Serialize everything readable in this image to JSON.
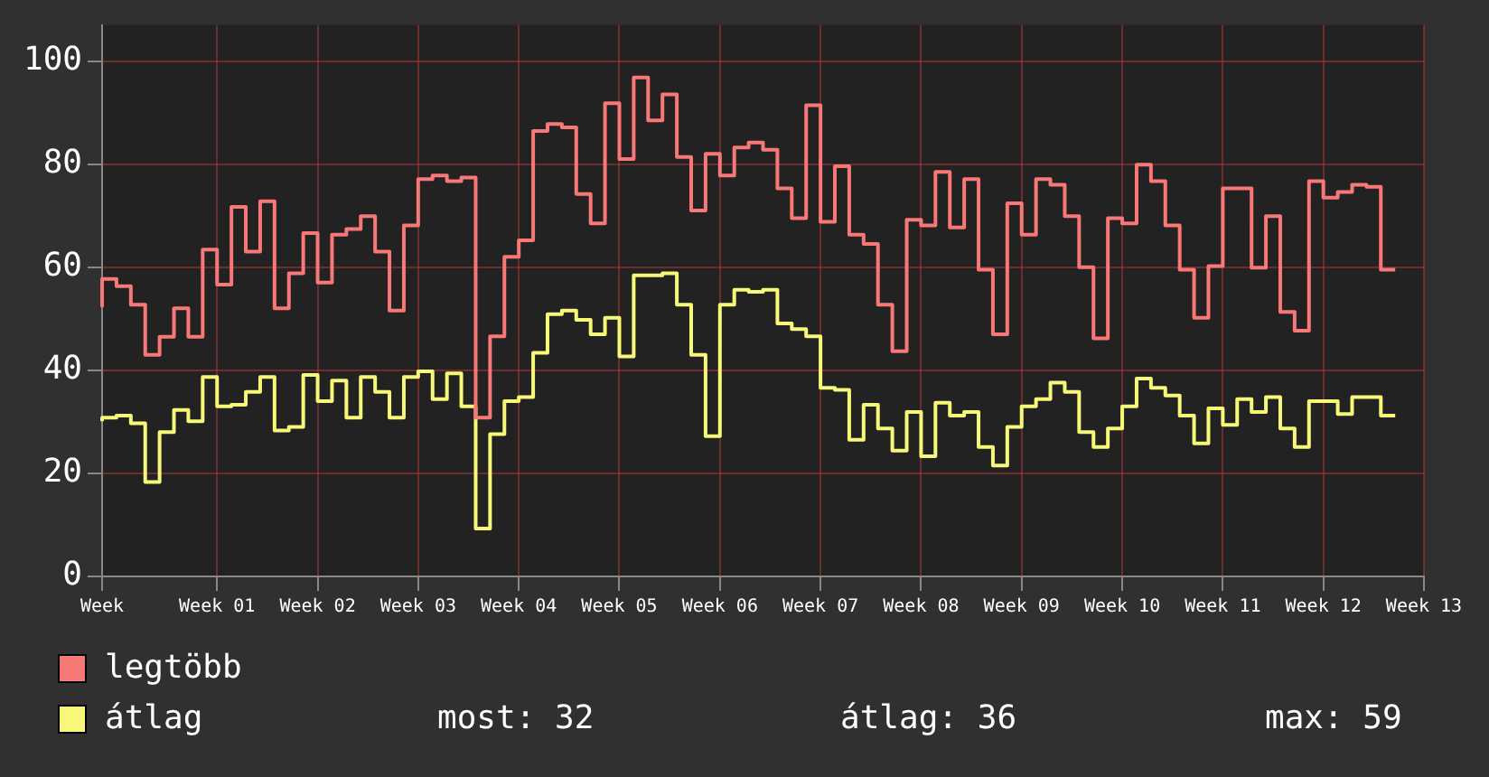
{
  "chart_data": {
    "type": "step",
    "categories": [
      "Week",
      null,
      null,
      null,
      null,
      null,
      null,
      null,
      "Week 01",
      null,
      null,
      null,
      null,
      null,
      null,
      "Week 02",
      null,
      null,
      null,
      null,
      null,
      null,
      "Week 03",
      null,
      null,
      null,
      null,
      null,
      null,
      "Week 04",
      null,
      null,
      null,
      null,
      null,
      null,
      "Week 05",
      null,
      null,
      null,
      null,
      null,
      null,
      "Week 06",
      null,
      null,
      null,
      null,
      null,
      null,
      "Week 07",
      null,
      null,
      null,
      null,
      null,
      null,
      "Week 08",
      null,
      null,
      null,
      null,
      null,
      null,
      "Week 09",
      null,
      null,
      null,
      null,
      null,
      null,
      "Week 10",
      null,
      null,
      null,
      null,
      null,
      null,
      "Week 11",
      null,
      null,
      null,
      null,
      null,
      null,
      "Week 12",
      null,
      null,
      null,
      null,
      null,
      null,
      "Week 13"
    ],
    "series": [
      {
        "name": "legtöbb",
        "color": "#f87878",
        "values": [
          52.3,
          57.7,
          56.3,
          52.7,
          43,
          46.5,
          52,
          46.5,
          63.4,
          56.6,
          71.7,
          63,
          72.8,
          52,
          58.8,
          66.6,
          57,
          66.3,
          67.4,
          69.9,
          63,
          51.6,
          68.1,
          77.1,
          77.8,
          76.7,
          77.4,
          30.8,
          46.6,
          62,
          65.2,
          86.4,
          87.8,
          87.1,
          74.2,
          68.5,
          91.8,
          81,
          96.8,
          88.5,
          93.5,
          81.4,
          71,
          82,
          77.8,
          83.2,
          84.2,
          82.8,
          75.3,
          69.5,
          91.4,
          68.8,
          79.6,
          66.3,
          64.5,
          52.7,
          43.7,
          69.2,
          68.1,
          78.5,
          67.7,
          77.1,
          59.5,
          47,
          72.4,
          66.3,
          77.1,
          76,
          69.9,
          60,
          46.2,
          69.5,
          68.5,
          79.9,
          76.7,
          68.1,
          59.5,
          50.2,
          60.2,
          75.3,
          75.3,
          59.9,
          69.9,
          51.3,
          47.7,
          76.7,
          73.5,
          74.6,
          76,
          75.6,
          59.5,
          null,
          null
        ]
      },
      {
        "name": "átlag",
        "color": "#f8f878",
        "values": [
          30.1,
          30.8,
          31.2,
          29.7,
          18.3,
          28,
          32.3,
          30.1,
          38.7,
          33,
          33.3,
          35.8,
          38.7,
          28.3,
          29,
          39.1,
          34,
          38,
          30.8,
          38.7,
          35.8,
          30.8,
          38.7,
          39.8,
          34.4,
          39.4,
          33,
          9.3,
          27.6,
          34,
          34.8,
          43.4,
          50.9,
          51.6,
          49.8,
          47,
          50.2,
          42.7,
          58.4,
          58.4,
          58.8,
          52.7,
          43,
          27.2,
          52.7,
          55.6,
          55.2,
          55.6,
          49.1,
          48,
          46.6,
          36.6,
          36.2,
          26.5,
          33.3,
          28.7,
          24.4,
          31.9,
          23.3,
          33.7,
          31.2,
          31.9,
          25.1,
          21.5,
          29,
          33,
          34.4,
          37.6,
          35.8,
          28,
          25.1,
          28.7,
          33,
          38.4,
          36.6,
          35.1,
          31.2,
          25.8,
          32.6,
          29.4,
          34.4,
          31.9,
          34.8,
          28.7,
          25.1,
          34,
          34,
          31.5,
          34.8,
          34.8,
          31.2,
          null,
          null
        ]
      }
    ],
    "ylim": [
      0,
      107
    ],
    "yticks": [
      0,
      20,
      40,
      60,
      80,
      100
    ],
    "grid": true,
    "legend": "bottom",
    "annotations": [
      "most: 32",
      "átlag: 36",
      "max: 59"
    ]
  }
}
